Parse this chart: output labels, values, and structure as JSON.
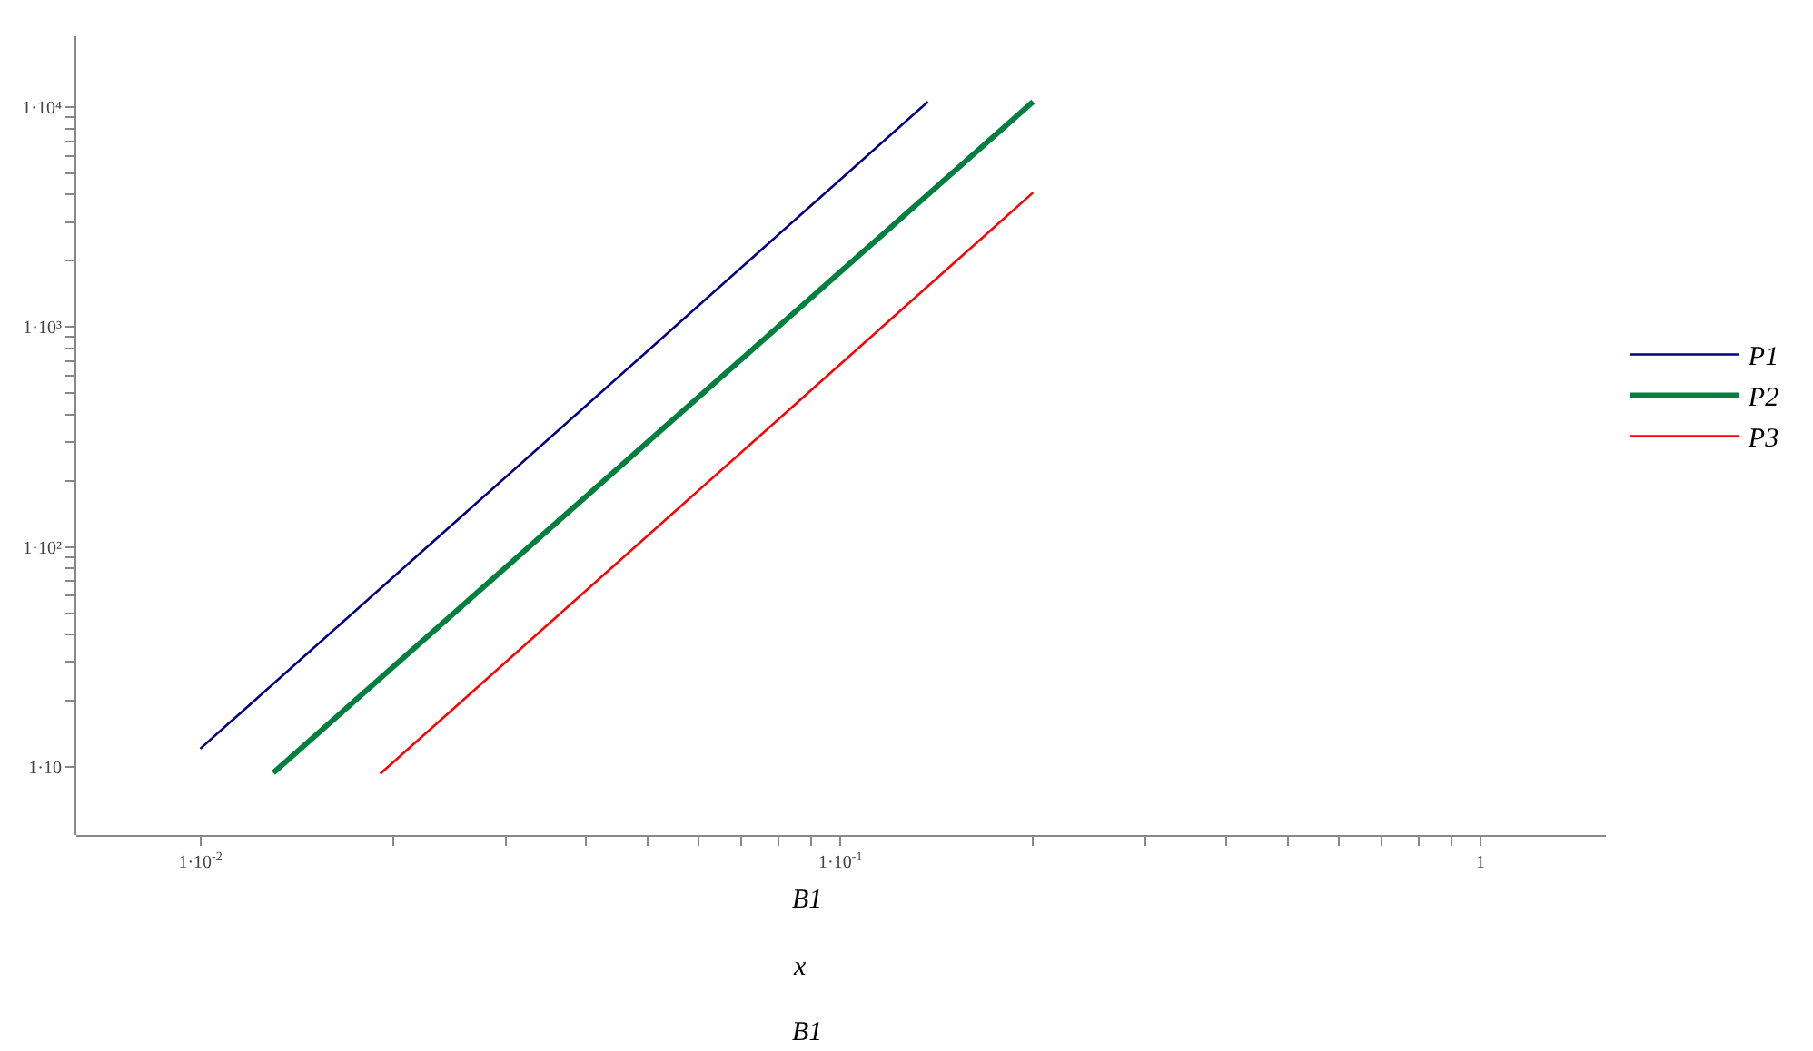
{
  "chart_data": {
    "type": "line",
    "log": "xy",
    "legend": "right",
    "series": [
      {
        "name": "P1",
        "color": "#000080",
        "x": [
          0.01,
          0.137
        ],
        "values": [
          12.1,
          10600
        ]
      },
      {
        "name": "P2",
        "color": "#007f3f",
        "x": [
          0.013,
          0.2
        ],
        "values": [
          9.4,
          10600
        ]
      },
      {
        "name": "P3",
        "color": "#ff0000",
        "x": [
          0.0191,
          0.2
        ],
        "values": [
          9.3,
          4090
        ]
      }
    ],
    "xlim": [
      0.0064,
      1.57
    ],
    "xticks": [
      {
        "value": 0.01,
        "label": "1·10$^{-2}$"
      },
      {
        "value": 0.02,
        "label": null
      },
      {
        "value": 0.03,
        "label": null
      },
      {
        "value": 0.04,
        "label": null
      },
      {
        "value": 0.05,
        "label": null
      },
      {
        "value": 0.06,
        "label": null
      },
      {
        "value": 0.07,
        "label": null
      },
      {
        "value": 0.08,
        "label": null
      },
      {
        "value": 0.09,
        "label": null
      },
      {
        "value": 0.1,
        "label": "1·10$^{-1}$"
      },
      {
        "value": 0.2,
        "label": null
      },
      {
        "value": 0.3,
        "label": null
      },
      {
        "value": 0.4,
        "label": null
      },
      {
        "value": 0.5,
        "label": null
      },
      {
        "value": 0.6,
        "label": null
      },
      {
        "value": 0.7,
        "label": null
      },
      {
        "value": 0.8,
        "label": null
      },
      {
        "value": 0.9,
        "label": null
      },
      1
    ],
    "ylim": [
      4.9,
      21000
    ],
    "yticks": [
      {
        "value": 10,
        "label": "1·10"
      },
      {
        "value": 20,
        "label": null
      },
      {
        "value": 30,
        "label": null
      },
      {
        "value": 40,
        "label": null
      },
      {
        "value": 50,
        "label": null
      },
      {
        "value": 60,
        "label": null
      },
      {
        "value": 70,
        "label": null
      },
      {
        "value": 80,
        "label": null
      },
      {
        "value": 90,
        "label": null
      },
      {
        "value": 100,
        "label": "1·10²"
      },
      {
        "value": 200,
        "label": null
      },
      {
        "value": 300,
        "label": null
      },
      {
        "value": 400,
        "label": null
      },
      {
        "value": 500,
        "label": null
      },
      {
        "value": 600,
        "label": null
      },
      {
        "value": 700,
        "label": null
      },
      {
        "value": 800,
        "label": null
      },
      {
        "value": 900,
        "label": null
      },
      {
        "value": 1000,
        "label": "1·10³"
      },
      {
        "value": 2000,
        "label": null
      },
      {
        "value": 3000,
        "label": null
      },
      {
        "value": 4000,
        "label": null
      },
      {
        "value": 5000,
        "label": null
      },
      {
        "value": 6000,
        "label": null
      },
      {
        "value": 7000,
        "label": null
      },
      {
        "value": 8000,
        "label": null
      },
      {
        "value": 9000,
        "label": null
      },
      {
        "value": 10000,
        "label": "1·10⁴"
      }
    ],
    "annotations": [
      "B1",
      "x",
      "B1"
    ]
  }
}
